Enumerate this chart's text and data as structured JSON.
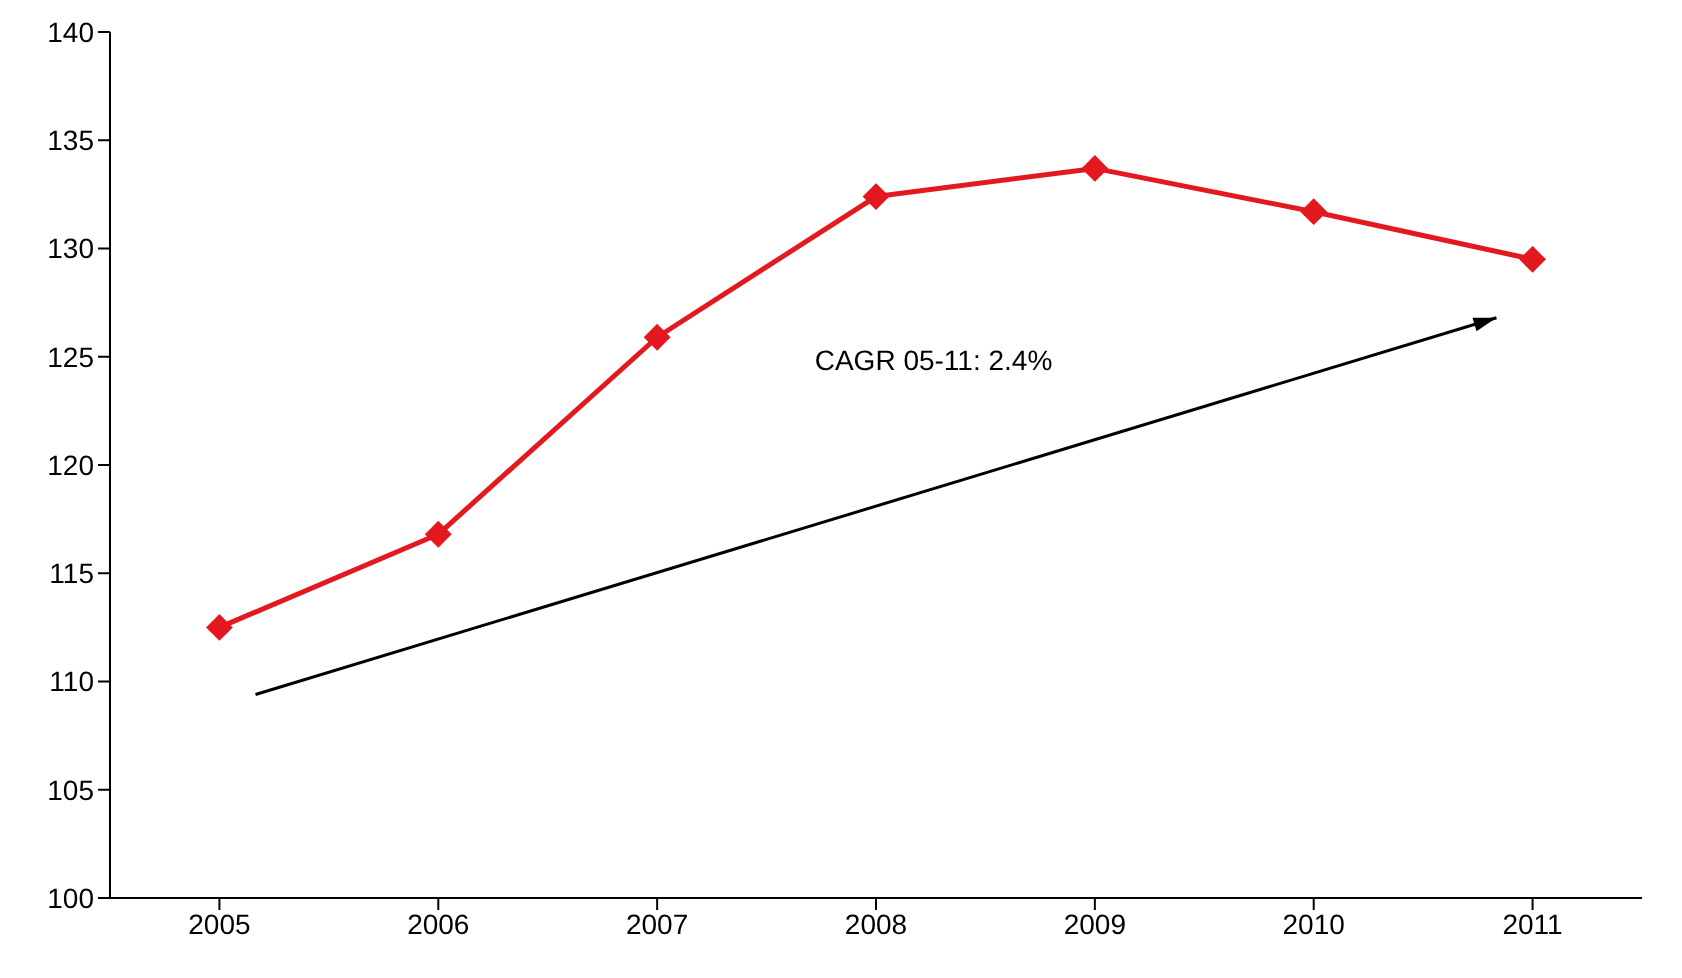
{
  "chart_data": {
    "type": "line",
    "categories": [
      "2005",
      "2006",
      "2007",
      "2008",
      "2009",
      "2010",
      "2011"
    ],
    "series": [
      {
        "color": "#e3191f",
        "values": [
          112.5,
          116.8,
          125.9,
          132.4,
          133.7,
          131.7,
          129.5
        ]
      }
    ],
    "ylim": [
      100,
      140
    ],
    "yticks": [
      100,
      105,
      110,
      115,
      120,
      125,
      130,
      135,
      140
    ],
    "marker": "diamond",
    "line_style": "solid",
    "annotations": [
      "CAGR 05-11: 2.4%"
    ]
  }
}
